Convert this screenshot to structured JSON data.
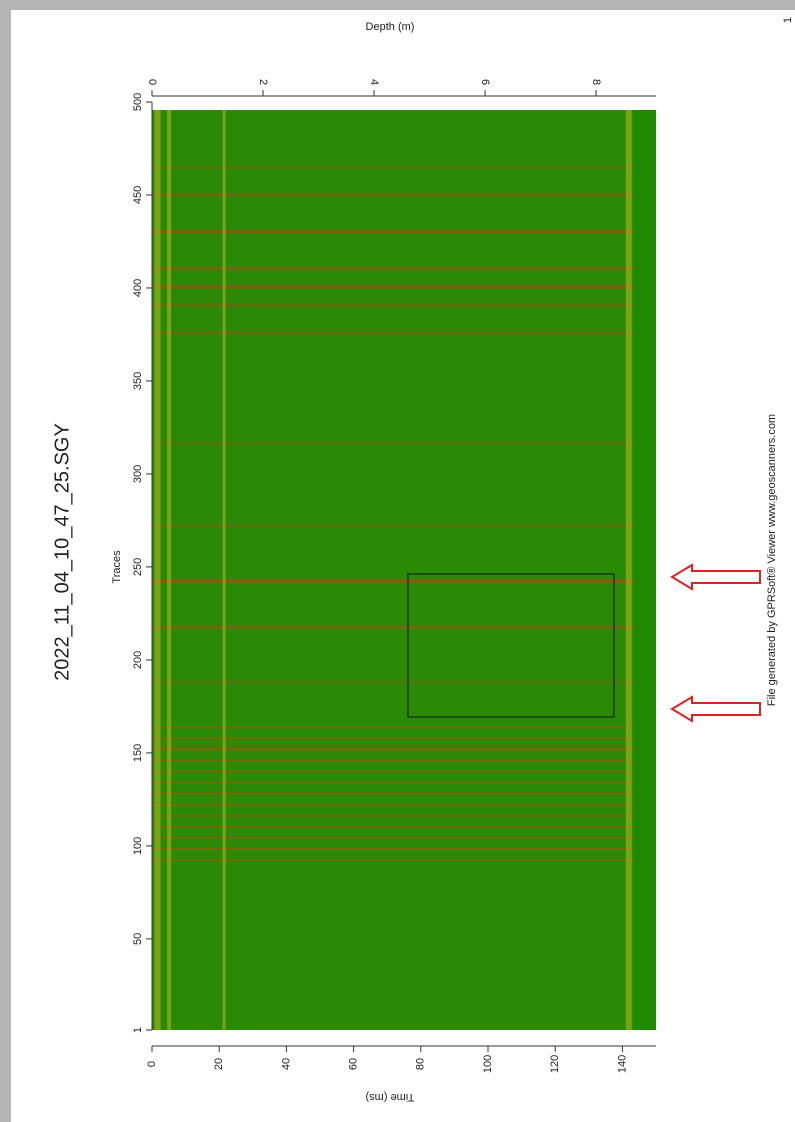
{
  "chart_data": {
    "type": "radargram",
    "title": "2022_11_04_10_47_25.SGY",
    "ylabel": "Traces",
    "ylim": [
      1,
      500
    ],
    "yticks": [
      1,
      50,
      100,
      150,
      200,
      250,
      300,
      350,
      400,
      450,
      500
    ],
    "xlabel": "Time (ms)",
    "xlim": [
      0,
      150
    ],
    "xticks": [
      0,
      20,
      40,
      60,
      80,
      100,
      120,
      140
    ],
    "x2label": "Depth (m)",
    "x2lim": [
      0,
      9.08
    ],
    "x2ticks": [
      0,
      2,
      4,
      6,
      8
    ],
    "footer": "File generated by GPRSoft® Viewer www.geoscanners.com",
    "page_number": "1",
    "color": "#2a8a06"
  }
}
